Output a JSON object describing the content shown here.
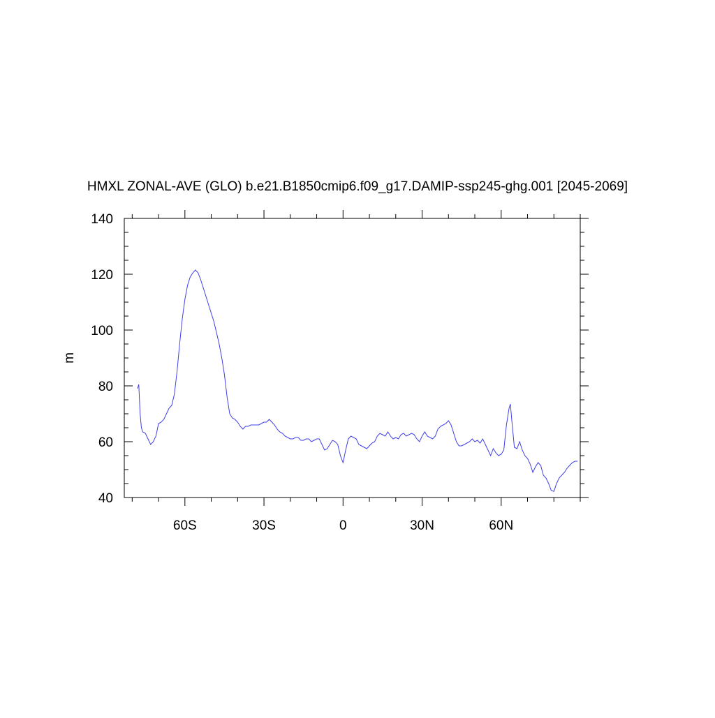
{
  "chart_data": {
    "type": "line",
    "title": "HMXL ZONAL-AVE (GLO) b.e21.B1850cmip6.f09_g17.DAMIP-ssp245-ghg.001 [2045-2069]",
    "y_label": "m",
    "xlim": [
      -83,
      90
    ],
    "ylim": [
      40,
      140
    ],
    "xticks": [
      {
        "value": -60,
        "label": "60S"
      },
      {
        "value": -30,
        "label": "30S"
      },
      0,
      {
        "value": 30,
        "label": "30N"
      },
      {
        "value": 60,
        "label": "60N"
      }
    ],
    "xminorticks": [
      -80,
      -70,
      -50,
      -40,
      -20,
      -10,
      10,
      20,
      40,
      50,
      70,
      80,
      90
    ],
    "yticks": [
      40,
      60,
      80,
      100,
      120,
      140
    ],
    "yminorticks": [
      45,
      50,
      55,
      65,
      70,
      75,
      85,
      90,
      95,
      105,
      110,
      115,
      125,
      130,
      135
    ],
    "series": [
      {
        "color": "#3f3fe8",
        "x": [
          -78,
          -77.5,
          -77,
          -76.5,
          -76,
          -75,
          -74,
          -73,
          -72,
          -71,
          -70,
          -69,
          -68,
          -67,
          -66,
          -65,
          -64,
          -63,
          -62,
          -61,
          -60,
          -59,
          -58,
          -57,
          -56,
          -55,
          -54,
          -53,
          -52,
          -51,
          -50,
          -49,
          -48,
          -47,
          -46,
          -45,
          -44,
          -43,
          -42,
          -41,
          -40,
          -39,
          -38,
          -37,
          -36,
          -35,
          -34,
          -33,
          -32,
          -31,
          -30,
          -29,
          -28,
          -27,
          -26,
          -25,
          -24,
          -23,
          -22,
          -21,
          -20,
          -19,
          -18,
          -17,
          -16,
          -15,
          -14,
          -13,
          -12,
          -11,
          -10,
          -9,
          -8,
          -7,
          -6,
          -5,
          -4,
          -3,
          -2,
          -1,
          0,
          1,
          2,
          3,
          4,
          5,
          6,
          7,
          8,
          9,
          10,
          11,
          12,
          13,
          14,
          15,
          16,
          17,
          18,
          19,
          20,
          21,
          22,
          23,
          24,
          25,
          26,
          27,
          28,
          29,
          30,
          31,
          32,
          33,
          34,
          35,
          36,
          37,
          38,
          39,
          40,
          41,
          42,
          43,
          44,
          45,
          46,
          47,
          48,
          49,
          50,
          51,
          52,
          53,
          54,
          55,
          56,
          57,
          58,
          59,
          60,
          61,
          62,
          63,
          63.5,
          64,
          65,
          66,
          67,
          68,
          69,
          70,
          71,
          72,
          73,
          74,
          75,
          76,
          77,
          78,
          79,
          80,
          81,
          82,
          83,
          84,
          85,
          86,
          87,
          88,
          89
        ],
        "values": [
          79,
          80.5,
          70,
          65,
          63.5,
          63,
          61,
          59,
          60,
          62,
          66.5,
          67,
          68,
          70,
          72,
          73,
          77,
          85,
          95,
          104,
          111,
          116,
          119,
          120.5,
          121.5,
          120.5,
          118,
          115,
          112,
          109,
          106,
          103,
          99,
          95,
          90,
          84,
          76,
          70,
          68.5,
          68,
          67,
          65.5,
          64.5,
          65.5,
          65.5,
          66,
          66,
          66,
          66,
          66.5,
          67,
          67,
          68,
          67,
          66,
          64.5,
          63.5,
          63,
          62,
          61.5,
          61,
          61,
          61.5,
          61.5,
          60.5,
          60.5,
          61,
          61,
          60,
          60.5,
          61,
          61,
          59,
          57,
          57.5,
          59,
          60.5,
          60,
          59,
          55,
          52.5,
          57,
          61,
          62,
          61.5,
          61,
          59,
          58.5,
          58,
          57.5,
          58.5,
          59.5,
          60,
          62,
          63,
          62.5,
          62,
          63.5,
          62,
          61,
          61.5,
          61,
          62.5,
          63,
          62,
          62.5,
          63,
          62.5,
          61,
          60,
          62,
          63.5,
          62,
          61.5,
          61,
          62,
          64.5,
          65.5,
          66,
          66.5,
          67.5,
          66,
          63,
          60,
          58.5,
          58.5,
          59,
          59.5,
          60,
          61,
          60,
          60.5,
          59.5,
          61,
          59,
          57,
          55,
          57.5,
          56,
          55,
          55.5,
          57,
          66,
          72,
          73.5,
          68,
          58,
          57.5,
          60,
          57,
          55,
          54,
          52,
          49,
          51,
          52.5,
          51.5,
          48,
          47,
          45,
          42.5,
          42.2,
          45,
          47,
          48,
          49,
          50.5,
          51.5,
          52.5,
          53,
          53
        ]
      }
    ]
  }
}
